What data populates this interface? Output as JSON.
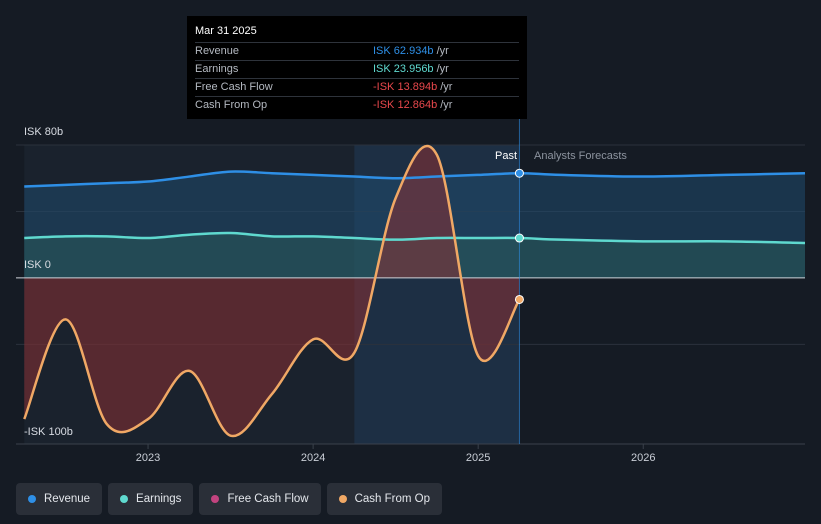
{
  "tooltip": {
    "date": "Mar 31 2025",
    "rows": [
      {
        "name": "Revenue",
        "value": "ISK 62.934b",
        "unit": "/yr",
        "color": "#2e8fe6"
      },
      {
        "name": "Earnings",
        "value": "ISK 23.956b",
        "unit": "/yr",
        "color": "#5fd9cf"
      },
      {
        "name": "Free Cash Flow",
        "value": "-ISK 13.894b",
        "unit": "/yr",
        "color": "#e8484c"
      },
      {
        "name": "Cash From Op",
        "value": "-ISK 12.864b",
        "unit": "/yr",
        "color": "#e8484c"
      }
    ]
  },
  "labels": {
    "past": "Past",
    "forecast": "Analysts Forecasts"
  },
  "legend": [
    {
      "name": "Revenue",
      "color": "#2e8fe6"
    },
    {
      "name": "Earnings",
      "color": "#5fd9cf"
    },
    {
      "name": "Free Cash Flow",
      "color": "#c2437f"
    },
    {
      "name": "Cash From Op",
      "color": "#f0a865"
    }
  ],
  "chart_data": {
    "type": "line",
    "y_tick_labels": [
      "ISK 80b",
      "ISK 0",
      "-ISK 100b"
    ],
    "x_tick_labels": [
      "2023",
      "2024",
      "2025",
      "2026"
    ],
    "ylim": [
      -100,
      80
    ],
    "xlim": [
      2022.2,
      2026.98
    ],
    "past_end": 2025.25,
    "highlight_range": [
      2024.25,
      2025.25
    ],
    "series": [
      {
        "name": "Revenue",
        "color": "#2e8fe6",
        "x": [
          2022.25,
          2022.5,
          2022.75,
          2023.0,
          2023.25,
          2023.5,
          2023.75,
          2024.0,
          2024.25,
          2024.5,
          2024.75,
          2025.0,
          2025.25,
          2025.5,
          2026.0,
          2026.5,
          2026.98
        ],
        "y": [
          55,
          56,
          57,
          58,
          61,
          64,
          63,
          62,
          61,
          60,
          61,
          62,
          63,
          62,
          61,
          62,
          63
        ]
      },
      {
        "name": "Earnings",
        "color": "#5fd9cf",
        "x": [
          2022.25,
          2022.5,
          2022.75,
          2023.0,
          2023.25,
          2023.5,
          2023.75,
          2024.0,
          2024.25,
          2024.5,
          2024.75,
          2025.0,
          2025.25,
          2025.5,
          2026.0,
          2026.5,
          2026.98
        ],
        "y": [
          24,
          25,
          25,
          24,
          26,
          27,
          25,
          25,
          24,
          23,
          24,
          24,
          24,
          23,
          22,
          22,
          21
        ]
      },
      {
        "name": "Cash From Op",
        "color": "#f0a865",
        "x": [
          2022.25,
          2022.5,
          2022.75,
          2023.0,
          2023.25,
          2023.5,
          2023.75,
          2024.0,
          2024.25,
          2024.5,
          2024.75,
          2025.0,
          2025.25
        ],
        "y": [
          -85,
          -25,
          -88,
          -85,
          -56,
          -95,
          -70,
          -37,
          -45,
          48,
          74,
          -47,
          -13
        ]
      }
    ]
  }
}
